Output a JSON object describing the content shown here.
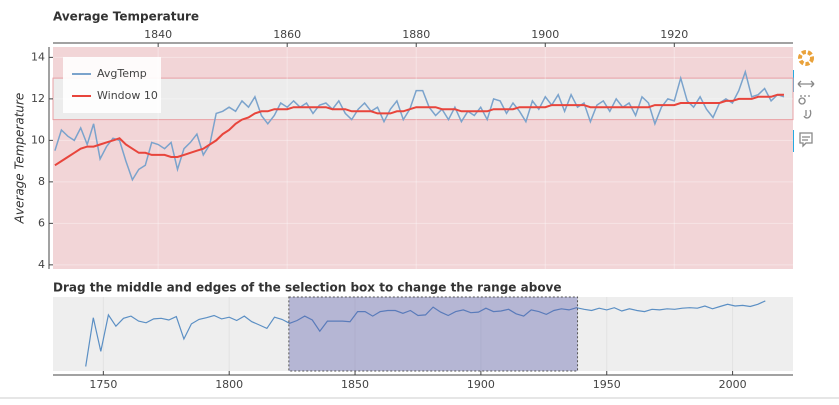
{
  "chart_data": [
    {
      "type": "line",
      "title": "Average Temperature",
      "y_label": "Average Temperature",
      "x_axis": "top",
      "legend": "top-left",
      "band": [
        11,
        13
      ],
      "xlim": [
        1823.7,
        1938.4
      ],
      "xticks": [
        1840,
        1860,
        1880,
        1900,
        1920
      ],
      "ylim": [
        3.8,
        14.5
      ],
      "yticks": [
        4,
        6,
        8,
        10,
        12,
        14
      ],
      "x": [
        1824,
        1825,
        1826,
        1827,
        1828,
        1829,
        1830,
        1831,
        1832,
        1833,
        1834,
        1835,
        1836,
        1837,
        1838,
        1839,
        1840,
        1841,
        1842,
        1843,
        1844,
        1845,
        1846,
        1847,
        1848,
        1849,
        1850,
        1851,
        1852,
        1853,
        1854,
        1855,
        1856,
        1857,
        1858,
        1859,
        1860,
        1861,
        1862,
        1863,
        1864,
        1865,
        1866,
        1867,
        1868,
        1869,
        1870,
        1871,
        1872,
        1873,
        1874,
        1875,
        1876,
        1877,
        1878,
        1879,
        1880,
        1881,
        1882,
        1883,
        1884,
        1885,
        1886,
        1887,
        1888,
        1889,
        1890,
        1891,
        1892,
        1893,
        1894,
        1895,
        1896,
        1897,
        1898,
        1899,
        1900,
        1901,
        1902,
        1903,
        1904,
        1905,
        1906,
        1907,
        1908,
        1909,
        1910,
        1911,
        1912,
        1913,
        1914,
        1915,
        1916,
        1917,
        1918,
        1919,
        1920,
        1921,
        1922,
        1923,
        1924,
        1925,
        1926,
        1927,
        1928,
        1929,
        1930,
        1931,
        1932,
        1933,
        1934,
        1935,
        1936,
        1937
      ],
      "series": [
        {
          "name": "AvgTemp",
          "color": "#7ba3cc",
          "values": [
            9.5,
            10.5,
            10.2,
            10.0,
            10.6,
            9.8,
            10.8,
            9.1,
            9.7,
            10.1,
            10.0,
            9.0,
            8.1,
            8.6,
            8.8,
            9.9,
            9.8,
            9.6,
            9.9,
            8.6,
            9.6,
            9.9,
            10.3,
            9.3,
            9.8,
            11.3,
            11.4,
            11.6,
            11.4,
            11.9,
            11.6,
            12.1,
            11.2,
            10.8,
            11.2,
            11.8,
            11.6,
            11.9,
            11.6,
            11.8,
            11.3,
            11.7,
            11.8,
            11.5,
            11.9,
            11.3,
            11.0,
            11.5,
            11.8,
            11.4,
            11.6,
            10.9,
            11.5,
            11.9,
            11.0,
            11.5,
            12.4,
            12.4,
            11.6,
            11.2,
            11.5,
            11.0,
            11.6,
            10.9,
            11.4,
            11.2,
            11.6,
            11.0,
            12.0,
            11.9,
            11.3,
            11.8,
            11.4,
            10.9,
            11.9,
            11.5,
            12.1,
            11.7,
            12.2,
            11.4,
            12.2,
            11.6,
            11.8,
            10.9,
            11.7,
            11.9,
            11.4,
            12.0,
            11.6,
            11.8,
            11.2,
            12.1,
            11.8,
            10.8,
            11.6,
            12.0,
            11.9,
            13.0,
            11.9,
            11.6,
            12.1,
            11.5,
            11.1,
            11.8,
            12.0,
            11.8,
            12.4,
            13.3,
            12.1,
            12.2,
            12.5,
            11.9,
            12.2,
            12.1
          ]
        },
        {
          "name": "Window 10",
          "color": "#e8453c",
          "values": [
            8.8,
            9.0,
            9.2,
            9.4,
            9.6,
            9.7,
            9.7,
            9.8,
            9.9,
            10.0,
            10.1,
            9.8,
            9.6,
            9.4,
            9.4,
            9.3,
            9.3,
            9.3,
            9.2,
            9.2,
            9.3,
            9.4,
            9.5,
            9.6,
            9.8,
            10.0,
            10.3,
            10.5,
            10.8,
            11.0,
            11.1,
            11.3,
            11.4,
            11.4,
            11.5,
            11.5,
            11.5,
            11.6,
            11.6,
            11.6,
            11.6,
            11.6,
            11.6,
            11.5,
            11.5,
            11.5,
            11.4,
            11.4,
            11.4,
            11.4,
            11.3,
            11.3,
            11.3,
            11.4,
            11.4,
            11.5,
            11.6,
            11.6,
            11.6,
            11.6,
            11.5,
            11.5,
            11.5,
            11.4,
            11.4,
            11.4,
            11.4,
            11.4,
            11.5,
            11.5,
            11.5,
            11.5,
            11.6,
            11.6,
            11.6,
            11.6,
            11.6,
            11.7,
            11.7,
            11.7,
            11.7,
            11.7,
            11.7,
            11.6,
            11.6,
            11.6,
            11.6,
            11.6,
            11.6,
            11.6,
            11.6,
            11.6,
            11.6,
            11.7,
            11.7,
            11.7,
            11.7,
            11.8,
            11.8,
            11.8,
            11.8,
            11.8,
            11.8,
            11.8,
            11.9,
            11.9,
            12.0,
            12.0,
            12.0,
            12.1,
            12.1,
            12.1,
            12.2,
            12.2
          ]
        }
      ]
    },
    {
      "type": "line",
      "title": "Drag the middle and edges of the selection box to change the range above",
      "color": "#5b8fc4",
      "xlim": [
        1730,
        2024
      ],
      "xticks": [
        1750,
        1800,
        1850,
        1900,
        1950,
        2000
      ],
      "ylim": [
        1,
        14.2
      ],
      "x": [
        1743,
        1746,
        1749,
        1752,
        1755,
        1758,
        1761,
        1764,
        1767,
        1770,
        1773,
        1776,
        1779,
        1782,
        1785,
        1788,
        1791,
        1794,
        1797,
        1800,
        1803,
        1806,
        1809,
        1812,
        1815,
        1818,
        1821,
        1824,
        1827,
        1830,
        1833,
        1836,
        1839,
        1842,
        1845,
        1848,
        1851,
        1854,
        1857,
        1860,
        1863,
        1866,
        1869,
        1872,
        1875,
        1878,
        1881,
        1884,
        1887,
        1890,
        1893,
        1896,
        1899,
        1902,
        1905,
        1908,
        1911,
        1914,
        1917,
        1920,
        1923,
        1926,
        1929,
        1932,
        1935,
        1938,
        1941,
        1944,
        1947,
        1950,
        1953,
        1956,
        1959,
        1962,
        1965,
        1968,
        1971,
        1974,
        1977,
        1980,
        1983,
        1986,
        1989,
        1992,
        1995,
        1998,
        2001,
        2004,
        2007,
        2010,
        2013
      ],
      "values": [
        1.8,
        10.5,
        4.5,
        11.0,
        9.0,
        10.4,
        10.8,
        9.9,
        9.6,
        10.3,
        10.4,
        10.1,
        10.7,
        6.7,
        9.4,
        10.2,
        10.5,
        10.9,
        10.3,
        10.6,
        10.0,
        10.8,
        9.8,
        9.2,
        8.6,
        10.6,
        10.2,
        9.5,
        10.0,
        10.8,
        10.1,
        8.1,
        9.9,
        9.9,
        9.9,
        9.8,
        11.6,
        11.6,
        10.8,
        11.6,
        11.8,
        11.8,
        11.3,
        11.8,
        10.9,
        11.0,
        12.4,
        11.5,
        10.9,
        11.6,
        11.9,
        11.4,
        11.5,
        12.2,
        11.6,
        11.7,
        12.0,
        11.2,
        10.8,
        11.9,
        11.6,
        11.1,
        11.8,
        12.1,
        11.9,
        12.3,
        12.0,
        11.8,
        12.2,
        11.9,
        12.3,
        11.7,
        12.1,
        11.8,
        11.6,
        12.0,
        11.9,
        12.1,
        12.0,
        12.2,
        12.3,
        12.2,
        12.6,
        12.1,
        12.5,
        12.9,
        12.6,
        12.7,
        12.5,
        12.9,
        13.5
      ]
    }
  ]
}
